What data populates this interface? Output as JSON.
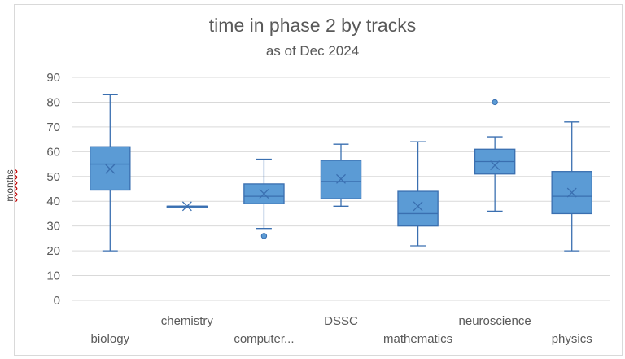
{
  "chart_data": {
    "type": "box",
    "title": "time in phase 2 by tracks",
    "subtitle": "as of Dec 2024",
    "ylabel": "months",
    "ylim": [
      0,
      90
    ],
    "yticks": [
      0,
      10,
      20,
      30,
      40,
      50,
      60,
      70,
      80,
      90
    ],
    "grid": true,
    "colors": {
      "box": "#5b9bd5",
      "stroke": "#3a6fb0",
      "grid": "#d9d9d9",
      "text": "#595959"
    },
    "categories": [
      {
        "label": "biology",
        "min": 20,
        "q1": 44.5,
        "median": 55,
        "q3": 62,
        "max": 83,
        "mean": 53,
        "outliers": []
      },
      {
        "label": "chemistry",
        "min": 38,
        "q1": 38,
        "median": 38,
        "q3": 38,
        "max": 38,
        "mean": 38,
        "outliers": []
      },
      {
        "label": "computer...",
        "min": 29,
        "q1": 39,
        "median": 42,
        "q3": 47,
        "max": 57,
        "mean": 43,
        "outliers": [
          26
        ]
      },
      {
        "label": "DSSC",
        "min": 38,
        "q1": 41,
        "median": 48,
        "q3": 56.5,
        "max": 63,
        "mean": 49,
        "outliers": []
      },
      {
        "label": "mathematics",
        "min": 22,
        "q1": 30,
        "median": 35,
        "q3": 44,
        "max": 64,
        "mean": 38,
        "outliers": []
      },
      {
        "label": "neuroscience",
        "min": 36,
        "q1": 51,
        "median": 56,
        "q3": 61,
        "max": 66,
        "mean": 54.5,
        "outliers": [
          80
        ]
      },
      {
        "label": "physics",
        "min": 20,
        "q1": 35,
        "median": 42,
        "q3": 52,
        "max": 72,
        "mean": 43.5,
        "outliers": []
      }
    ]
  }
}
